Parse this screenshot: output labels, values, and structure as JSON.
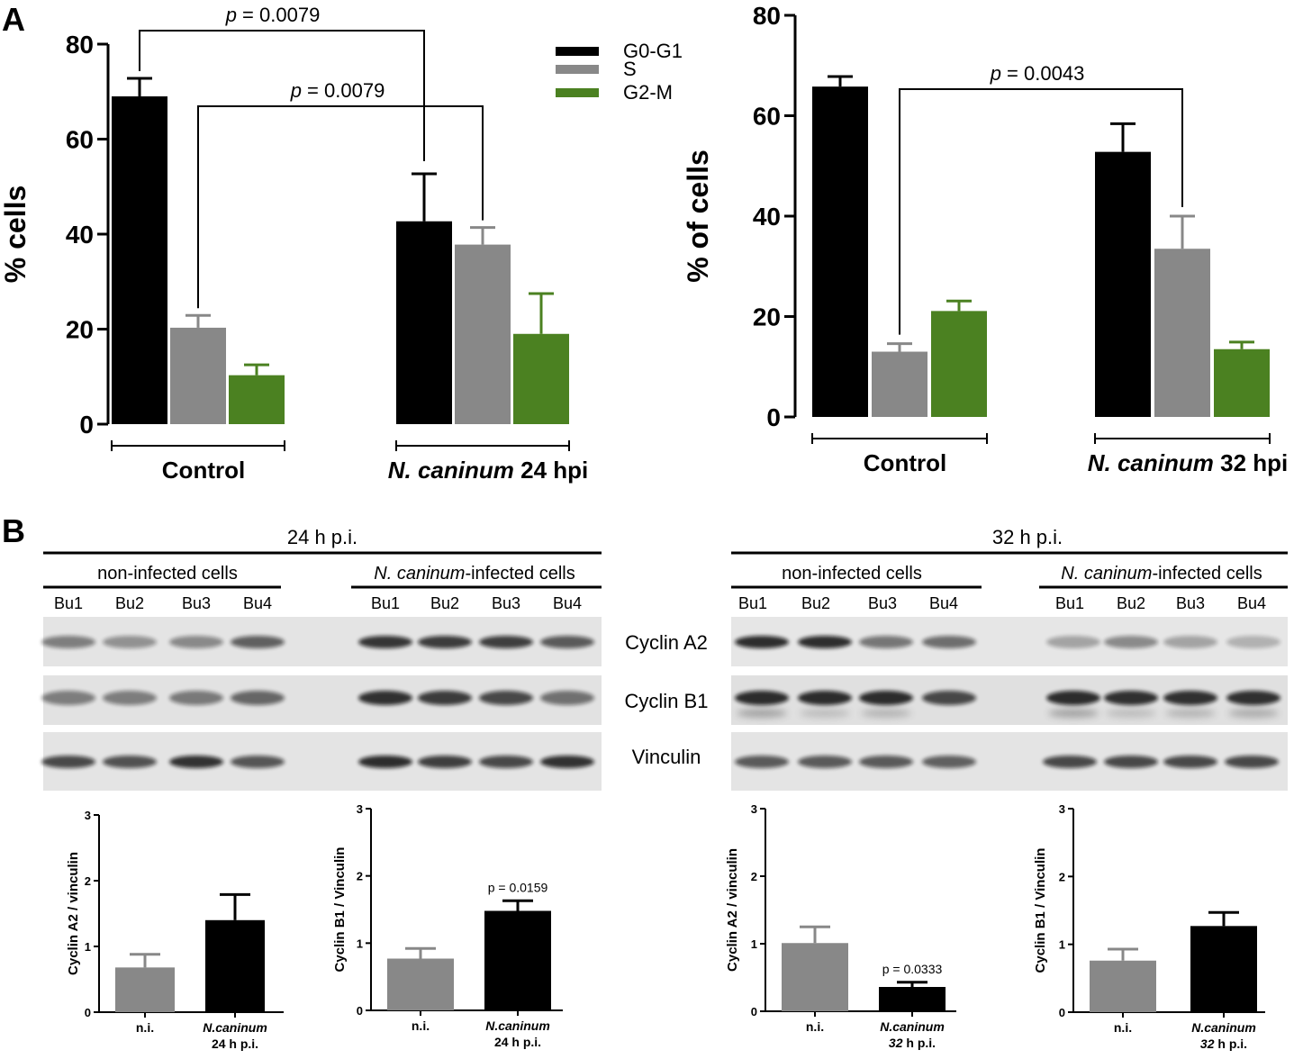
{
  "panel_labels": {
    "a": "A",
    "b": "B"
  },
  "colors": {
    "g0g1": "#000000",
    "s": "#888888",
    "g2m": "#4b8121",
    "ni": "#888888",
    "inf": "#000000"
  },
  "legend": [
    "G0-G1",
    "S",
    "G2-M"
  ],
  "blot": {
    "left_time": "24 h p.i.",
    "right_time": "32 h p.i.",
    "ni_label": "non-infected cells",
    "inf_label_italic": "N. caninum",
    "inf_label_rest": "-infected cells",
    "lanes": [
      "Bu1",
      "Bu2",
      "Bu3",
      "Bu4"
    ],
    "proteins": [
      "Cyclin A2",
      "Cyclin B1",
      "Vinculin"
    ]
  },
  "chart_data": [
    {
      "type": "bar",
      "panel": "A-left",
      "ylabel": "% cells",
      "ylim": [
        0,
        80
      ],
      "yticks": [
        0,
        20,
        40,
        60,
        80
      ],
      "groups": [
        {
          "label": "Control",
          "italic": ""
        },
        {
          "label": " 24 hpi",
          "italic": "N. caninum"
        }
      ],
      "series": [
        {
          "name": "G0-G1",
          "values": [
            69,
            42.7
          ],
          "errors": [
            3.8,
            10
          ]
        },
        {
          "name": "S",
          "values": [
            20.3,
            37.8
          ],
          "errors": [
            2.6,
            3.6
          ]
        },
        {
          "name": "G2-M",
          "values": [
            10.3,
            19
          ],
          "errors": [
            2.2,
            8.5
          ]
        }
      ],
      "annotations": [
        {
          "text": "p = 0.0079"
        },
        {
          "text": "p = 0.0079"
        }
      ]
    },
    {
      "type": "bar",
      "panel": "A-right",
      "ylabel": "% of cells",
      "ylim": [
        0,
        80
      ],
      "yticks": [
        0,
        20,
        40,
        60,
        80
      ],
      "groups": [
        {
          "label": "Control",
          "italic": ""
        },
        {
          "label": " 32 hpi",
          "italic": "N. caninum"
        }
      ],
      "series": [
        {
          "name": "G0-G1",
          "values": [
            65.8,
            52.8
          ],
          "errors": [
            2,
            5.6
          ]
        },
        {
          "name": "S",
          "values": [
            13,
            33.5
          ],
          "errors": [
            1.6,
            6.5
          ]
        },
        {
          "name": "G2-M",
          "values": [
            21.1,
            13.5
          ],
          "errors": [
            2,
            1.4
          ]
        }
      ],
      "annotations": [
        {
          "text": "p = 0.0043"
        }
      ]
    },
    {
      "type": "bar",
      "panel": "B-1",
      "ylabel": "Cyclin A2 / vinculin",
      "ylim": [
        0,
        3
      ],
      "yticks": [
        0,
        1,
        2,
        3
      ],
      "categories": [
        {
          "line1": "n.i.",
          "line1_italic": false,
          "line2": "",
          "line2_italic": ""
        },
        {
          "line1": "N.caninum",
          "line1_italic": true,
          "line2": "24 h p.i.",
          "line2_italic": ""
        }
      ],
      "values": [
        0.68,
        1.4
      ],
      "errors": [
        0.2,
        0.39
      ],
      "annotation": ""
    },
    {
      "type": "bar",
      "panel": "B-2",
      "ylabel": "Cyclin B1 / Vinculin",
      "ylim": [
        0,
        3
      ],
      "yticks": [
        0,
        1,
        2,
        3
      ],
      "categories": [
        {
          "line1": "n.i.",
          "line1_italic": false,
          "line2": "",
          "line2_italic": ""
        },
        {
          "line1": "N.caninum",
          "line1_italic": true,
          "line2": "24 h p.i.",
          "line2_italic": ""
        }
      ],
      "values": [
        0.77,
        1.48
      ],
      "errors": [
        0.15,
        0.15
      ],
      "annotation": "p = 0.0159"
    },
    {
      "type": "bar",
      "panel": "B-3",
      "ylabel": "Cyclin A2 / vinculin",
      "ylim": [
        0,
        3
      ],
      "yticks": [
        0,
        1,
        2,
        3
      ],
      "categories": [
        {
          "line1": "n.i.",
          "line1_italic": false,
          "line2": "",
          "line2_italic": ""
        },
        {
          "line1": "N.caninum",
          "line1_italic": true,
          "line2": " h p.i.",
          "line2_italic": "32"
        }
      ],
      "values": [
        1.01,
        0.36
      ],
      "errors": [
        0.24,
        0.07
      ],
      "annotation": "p = 0.0333"
    },
    {
      "type": "bar",
      "panel": "B-4",
      "ylabel": "Cyclin B1 / Vinculin",
      "ylim": [
        0,
        3
      ],
      "yticks": [
        0,
        1,
        2,
        3
      ],
      "categories": [
        {
          "line1": "n.i.",
          "line1_italic": false,
          "line2": "",
          "line2_italic": ""
        },
        {
          "line1": "N.caninum",
          "line1_italic": true,
          "line2": " h p.i.",
          "line2_italic": "32"
        }
      ],
      "values": [
        0.76,
        1.27
      ],
      "errors": [
        0.17,
        0.2
      ],
      "annotation": ""
    }
  ]
}
